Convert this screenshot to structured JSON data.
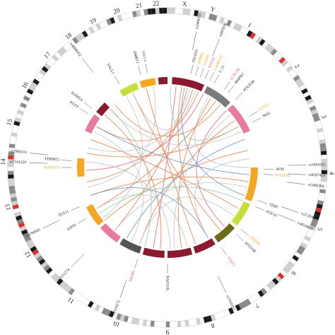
{
  "chromosomes": [
    {
      "label": "1",
      "angle": 30
    },
    {
      "label": "2",
      "angle": 52
    },
    {
      "label": "3",
      "angle": 72
    },
    {
      "label": "4",
      "angle": 92
    },
    {
      "label": "5",
      "angle": 112
    },
    {
      "label": "6",
      "angle": 130
    },
    {
      "label": "7",
      "angle": 147
    },
    {
      "label": "8",
      "angle": 164
    },
    {
      "label": "9",
      "angle": 180
    },
    {
      "label": "10",
      "angle": 198
    },
    {
      "label": "11",
      "angle": 216
    },
    {
      "label": "12",
      "angle": 238
    },
    {
      "label": "13",
      "angle": 256
    },
    {
      "label": "14",
      "angle": 272
    },
    {
      "label": "15",
      "angle": 286
    },
    {
      "label": "16",
      "angle": 300
    },
    {
      "label": "17",
      "angle": 313
    },
    {
      "label": "18",
      "angle": 323
    },
    {
      "label": "19",
      "angle": 333
    },
    {
      "label": "20",
      "angle": 342
    },
    {
      "label": "21",
      "angle": 350
    },
    {
      "label": "22",
      "angle": 356
    },
    {
      "label": "X",
      "angle": 6
    },
    {
      "label": "Y",
      "angle": 16
    }
  ],
  "segments": [
    {
      "start": 3,
      "end": 24,
      "color": "#8b1a2e"
    },
    {
      "start": 26,
      "end": 44,
      "color": "#7a7a7a"
    },
    {
      "start": 46,
      "end": 66,
      "color": "#e87a9e"
    },
    {
      "start": 68,
      "end": 88,
      "color": "#ffffff"
    },
    {
      "start": 90,
      "end": 112,
      "color": "#f5a623"
    },
    {
      "start": 114,
      "end": 130,
      "color": "#c9dd3a"
    },
    {
      "start": 132,
      "end": 146,
      "color": "#6b6b1a"
    },
    {
      "start": 148,
      "end": 162,
      "color": "#8b1a2e"
    },
    {
      "start": 164,
      "end": 180,
      "color": "#8b1a2e"
    },
    {
      "start": 182,
      "end": 196,
      "color": "#8b1a2e"
    },
    {
      "start": 198,
      "end": 212,
      "color": "#555555"
    },
    {
      "start": 214,
      "end": 228,
      "color": "#e87a9e"
    },
    {
      "start": 230,
      "end": 244,
      "color": "#f5a623"
    },
    {
      "start": 246,
      "end": 262,
      "color": "#ffffff"
    },
    {
      "start": 264,
      "end": 276,
      "color": "#f5a623"
    },
    {
      "start": 278,
      "end": 292,
      "color": "#ffffff"
    },
    {
      "start": 294,
      "end": 306,
      "color": "#e87a9e"
    },
    {
      "start": 308,
      "end": 316,
      "color": "#8b1a2e"
    },
    {
      "start": 318,
      "end": 326,
      "color": "#ffffff"
    },
    {
      "start": 328,
      "end": 340,
      "color": "#c9dd3a"
    },
    {
      "start": 342,
      "end": 352,
      "color": "#f5a623"
    },
    {
      "start": 354,
      "end": 360,
      "color": "#8b1a2e"
    }
  ],
  "genes": [
    {
      "text": "THADA",
      "angle": 14,
      "color": "#222222"
    },
    {
      "text": "INHBA",
      "angle": 17,
      "color": "#f5a623"
    },
    {
      "text": "CASP8",
      "angle": 20,
      "color": "#f5a623"
    },
    {
      "text": "PTGS2",
      "angle": 23,
      "color": "#e05a6a"
    },
    {
      "text": "CAMK1D",
      "angle": 26,
      "color": "#f5a623"
    },
    {
      "text": "IL1B",
      "angle": 29,
      "color": "#4b8a3c"
    },
    {
      "text": "SCN11B",
      "angle": 36,
      "color": "#e05a6a"
    },
    {
      "text": "BMPR2",
      "angle": 39,
      "color": "#222222"
    },
    {
      "text": "POLR3B",
      "angle": 45,
      "color": "#222222"
    },
    {
      "text": "SKIL",
      "angle": 62,
      "color": "#222222"
    },
    {
      "text": "KITLG",
      "angle": 58,
      "color": "#f5a623"
    },
    {
      "text": "AFM",
      "angle": 91,
      "color": "#222222"
    },
    {
      "text": "POLR3B",
      "angle": 94,
      "color": "#f5a623"
    },
    {
      "text": "TERT",
      "angle": 110,
      "color": "#222222"
    },
    {
      "text": "FGF10",
      "angle": 114,
      "color": "#222222"
    },
    {
      "text": "PDE8B",
      "angle": 130,
      "color": "#f5a623"
    },
    {
      "text": "MYO5B",
      "angle": 134,
      "color": "#222222"
    },
    {
      "text": "STAT3",
      "angle": 146,
      "color": "#e05a6a"
    },
    {
      "text": "RAD51B",
      "angle": 180,
      "color": "#222222"
    },
    {
      "text": "MDM2",
      "angle": 198,
      "color": "#e05a6a"
    },
    {
      "text": "KRT8",
      "angle": 238,
      "color": "#222222"
    },
    {
      "text": "TEX11",
      "angle": 246,
      "color": "#222222"
    },
    {
      "text": "RAD51D",
      "angle": 270,
      "color": "#f5a623"
    },
    {
      "text": "FERMT2",
      "angle": 274,
      "color": "#222222"
    },
    {
      "text": "KLF4",
      "angle": 304,
      "color": "#222222"
    },
    {
      "text": "KDM5A",
      "angle": 308,
      "color": "#222222"
    },
    {
      "text": "SALL1",
      "angle": 330,
      "color": "#222222"
    },
    {
      "text": "DMRT1",
      "angle": 344,
      "color": "#222222"
    },
    {
      "text": "SPRY4",
      "angle": 348,
      "color": "#4b8a3c"
    }
  ],
  "snps": [
    {
      "text": "rs2900333",
      "angle": 12
    },
    {
      "text": "rs995030",
      "angle": 22
    },
    {
      "text": "rs1894292",
      "angle": 89
    },
    {
      "text": "rs9387419",
      "angle": 93
    },
    {
      "text": "rs3486284",
      "angle": 97
    },
    {
      "text": "rs2720460",
      "angle": 109
    },
    {
      "text": "rs4624820",
      "angle": 113
    },
    {
      "text": "rs7010162",
      "angle": 155
    },
    {
      "text": "rs1510272",
      "angle": 200
    },
    {
      "text": "rs7221274",
      "angle": 224
    },
    {
      "text": "rs3790665",
      "angle": 244
    },
    {
      "text": "rs7141220",
      "angle": 272
    },
    {
      "text": "rs2900333",
      "angle": 276
    },
    {
      "text": "rs4888262",
      "angle": 322
    }
  ],
  "links": [
    {
      "a": 10,
      "b": 150,
      "color": "#e8733a"
    },
    {
      "a": 14,
      "b": 220,
      "color": "#e8733a"
    },
    {
      "a": 18,
      "b": 260,
      "color": "#e8733a"
    },
    {
      "a": 22,
      "b": 300,
      "color": "#e8733a"
    },
    {
      "a": 32,
      "b": 170,
      "color": "#e8733a"
    },
    {
      "a": 36,
      "b": 240,
      "color": "#e8733a"
    },
    {
      "a": 40,
      "b": 320,
      "color": "#e8733a"
    },
    {
      "a": 55,
      "b": 200,
      "color": "#e8733a"
    },
    {
      "a": 60,
      "b": 280,
      "color": "#e8733a"
    },
    {
      "a": 78,
      "b": 230,
      "color": "#e8733a"
    },
    {
      "a": 100,
      "b": 250,
      "color": "#e8733a"
    },
    {
      "a": 120,
      "b": 290,
      "color": "#e8733a"
    },
    {
      "a": 140,
      "b": 335,
      "color": "#e8733a"
    },
    {
      "a": 160,
      "b": 345,
      "color": "#e8733a"
    },
    {
      "a": 185,
      "b": 310,
      "color": "#e8733a"
    },
    {
      "a": 6,
      "b": 190,
      "color": "#e05a6a"
    },
    {
      "a": 26,
      "b": 268,
      "color": "#e05a6a"
    },
    {
      "a": 46,
      "b": 136,
      "color": "#e05a6a"
    },
    {
      "a": 12,
      "b": 110,
      "color": "#5b8ec9"
    },
    {
      "a": 70,
      "b": 210,
      "color": "#5b8ec9"
    },
    {
      "a": 95,
      "b": 300,
      "color": "#5b8ec9"
    },
    {
      "a": 150,
      "b": 250,
      "color": "#5b8ec9"
    },
    {
      "a": 20,
      "b": 335,
      "color": "#bdbdbd"
    },
    {
      "a": 30,
      "b": 90,
      "color": "#bdbdbd"
    },
    {
      "a": 50,
      "b": 175,
      "color": "#bdbdbd"
    },
    {
      "a": 64,
      "b": 315,
      "color": "#bdbdbd"
    },
    {
      "a": 84,
      "b": 150,
      "color": "#bdbdbd"
    },
    {
      "a": 104,
      "b": 220,
      "color": "#bdbdbd"
    },
    {
      "a": 126,
      "b": 200,
      "color": "#bdbdbd"
    },
    {
      "a": 166,
      "b": 240,
      "color": "#bdbdbd"
    },
    {
      "a": 178,
      "b": 274,
      "color": "#bdbdbd"
    },
    {
      "a": 206,
      "b": 296,
      "color": "#bdbdbd"
    },
    {
      "a": 232,
      "b": 330,
      "color": "#bdbdbd"
    },
    {
      "a": 256,
      "b": 350,
      "color": "#bdbdbd"
    },
    {
      "a": 284,
      "b": 16,
      "color": "#bdbdbd"
    },
    {
      "a": 2,
      "b": 60,
      "color": "#8fc9a0"
    },
    {
      "a": 114,
      "b": 236,
      "color": "#8fc9a0"
    },
    {
      "a": 196,
      "b": 316,
      "color": "#8fc9a0"
    }
  ]
}
